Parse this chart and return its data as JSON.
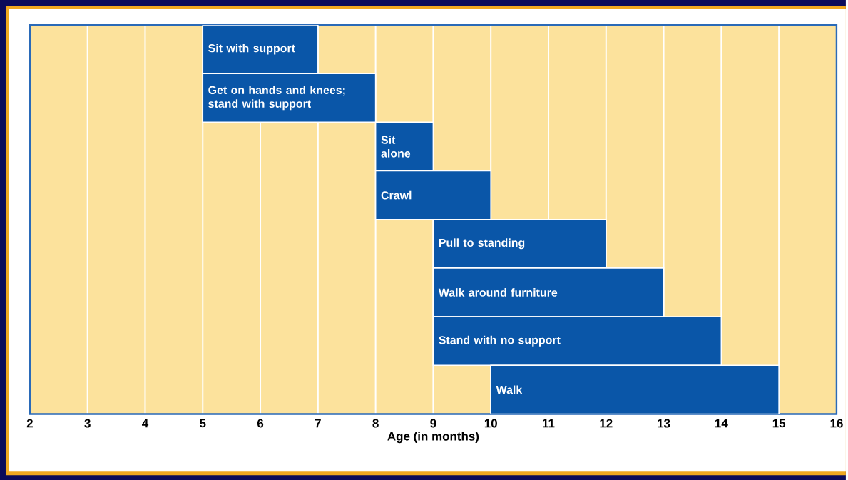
{
  "chart_data": {
    "type": "bar",
    "orientation": "horizontal",
    "xlabel": "Age (in months)",
    "categories": [
      "Sit with support",
      "Get on hands and knees; stand with support",
      "Sit alone",
      "Crawl",
      "Pull to standing",
      "Walk around furniture",
      "Stand with no support",
      "Walk"
    ],
    "base": [
      5,
      5,
      8,
      8,
      9,
      9,
      9,
      10
    ],
    "values": [
      2,
      3,
      1,
      2,
      3,
      4,
      5,
      5
    ],
    "color": "#0a56a8",
    "xlim": [
      2,
      16
    ],
    "xticks": [
      2,
      3,
      4,
      5,
      6,
      7,
      8,
      9,
      10,
      11,
      12,
      13,
      14,
      15,
      16
    ],
    "grid": "x"
  }
}
